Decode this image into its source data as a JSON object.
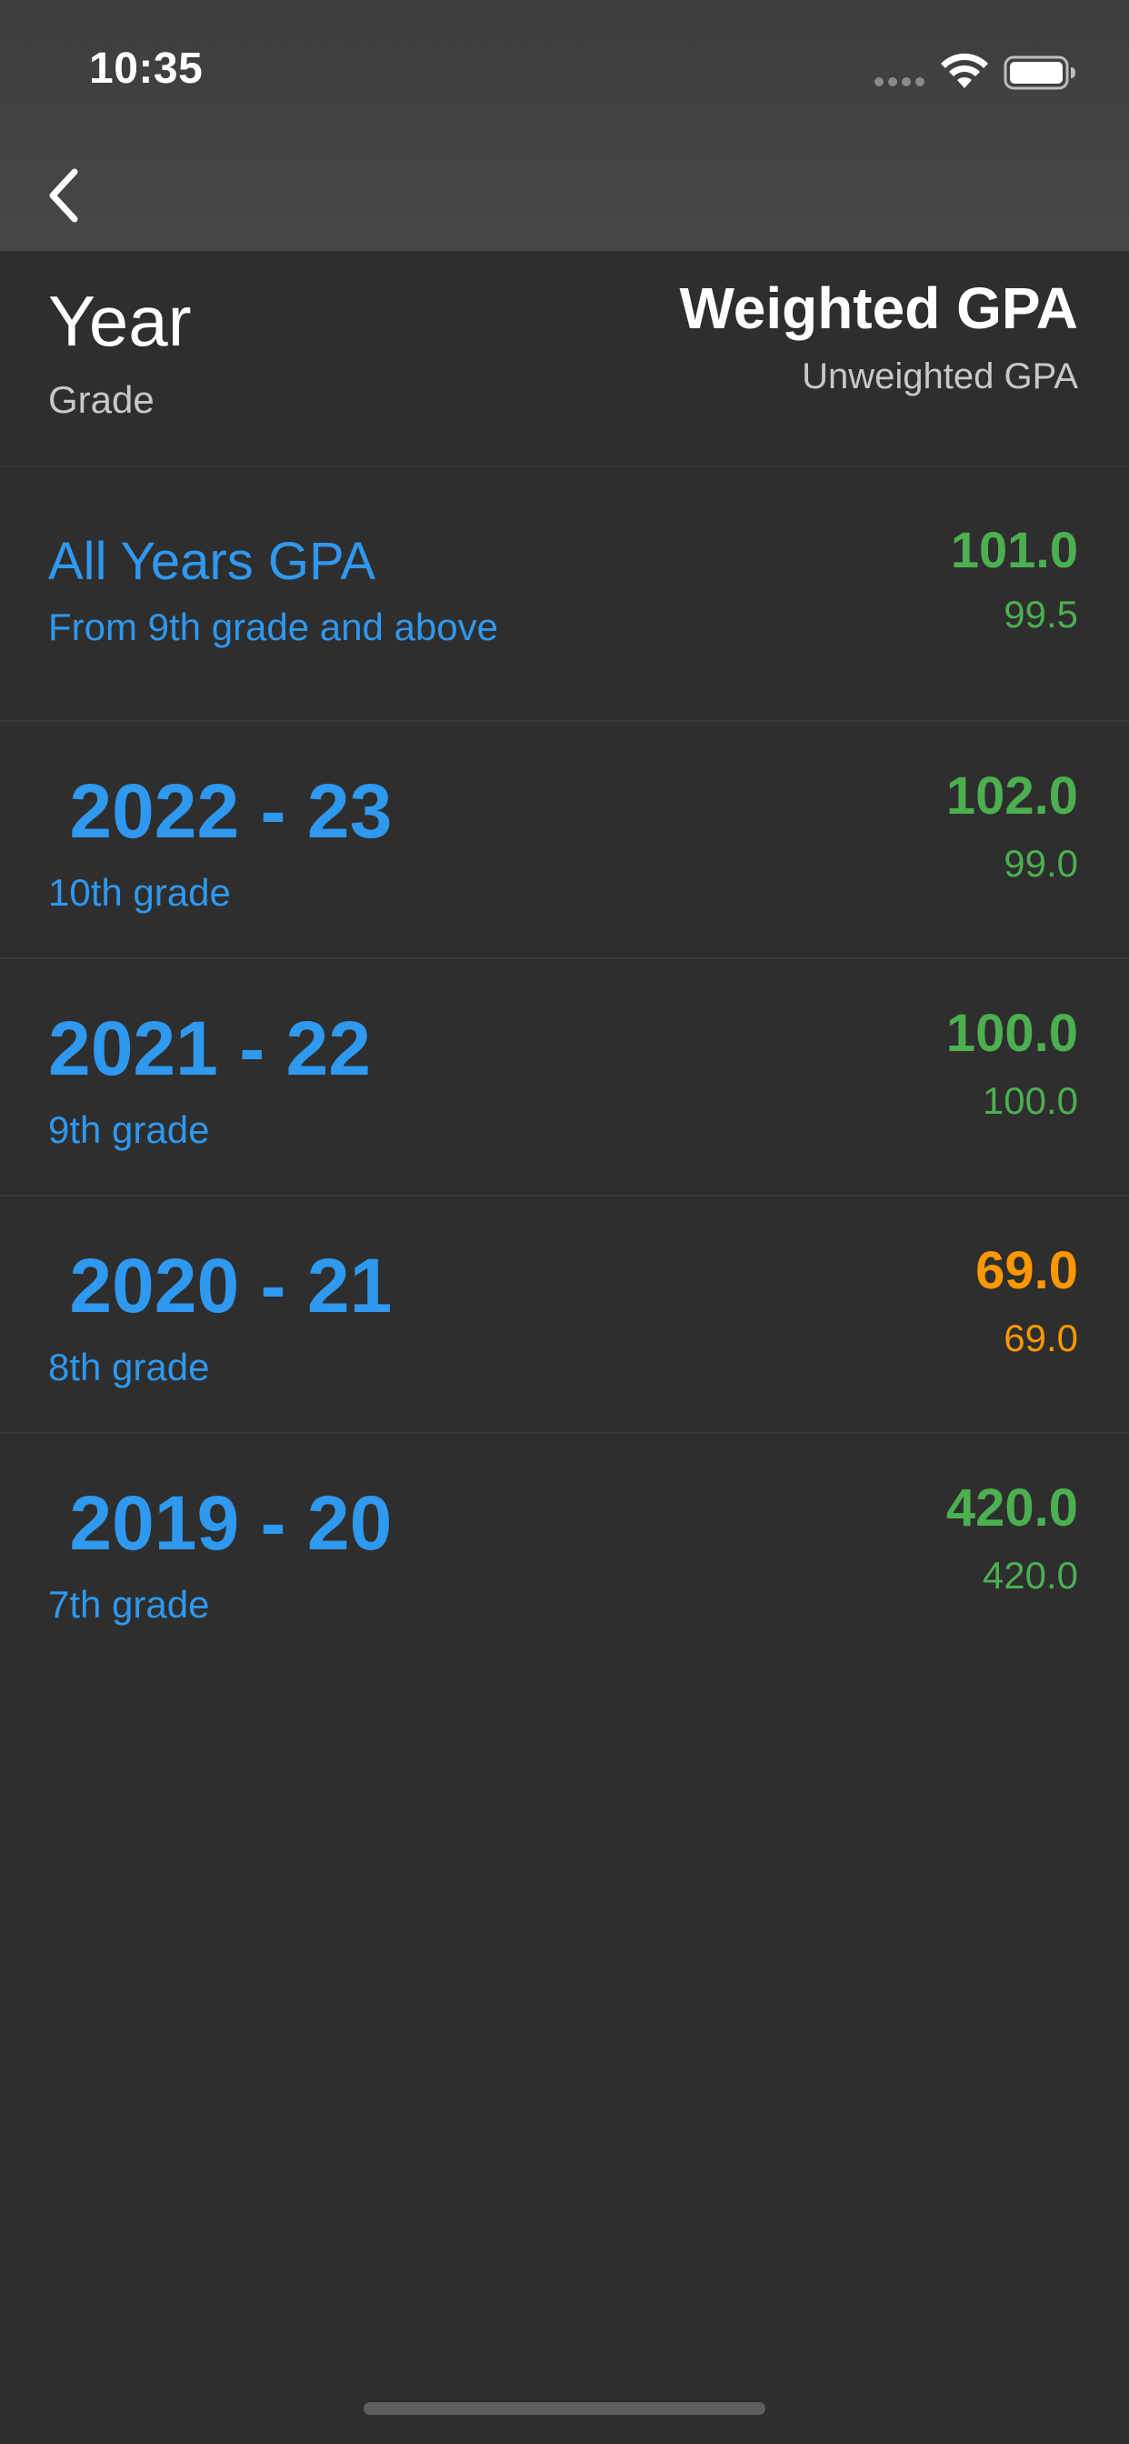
{
  "status_bar": {
    "time": "10:35",
    "icons": [
      "cellular-signal-icon",
      "wifi-icon",
      "battery-icon"
    ]
  },
  "nav": {
    "back_icon": "chevron-left-icon"
  },
  "header": {
    "title": "Year",
    "subtitle": "Grade",
    "right_title": "Weighted GPA",
    "right_subtitle": "Unweighted GPA"
  },
  "colors": {
    "accent_blue": "#2f98ef",
    "good_green": "#4caf50",
    "warn_orange": "#ff9800",
    "background": "#2e2e2e"
  },
  "rows": [
    {
      "title": "All Years GPA",
      "subtitle": "From 9th grade and above",
      "weighted": "101.0",
      "unweighted": "99.5",
      "status": "green"
    },
    {
      "title": " 2022 - 23",
      "subtitle": "10th grade",
      "weighted": "102.0",
      "unweighted": "99.0",
      "status": "green"
    },
    {
      "title": "2021 - 22",
      "subtitle": "9th grade",
      "weighted": "100.0",
      "unweighted": "100.0",
      "status": "green"
    },
    {
      "title": " 2020 - 21",
      "subtitle": "8th grade",
      "weighted": "69.0",
      "unweighted": "69.0",
      "status": "orange"
    },
    {
      "title": " 2019 - 20",
      "subtitle": "7th grade",
      "weighted": "420.0",
      "unweighted": "420.0",
      "status": "green"
    }
  ]
}
